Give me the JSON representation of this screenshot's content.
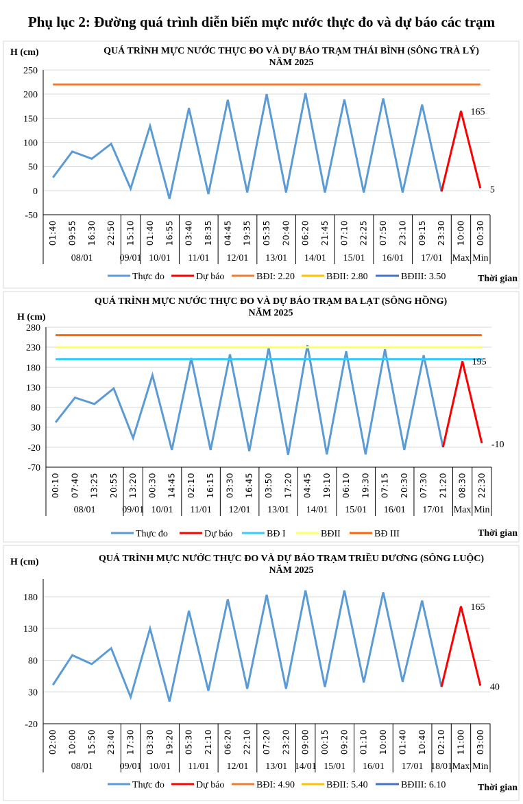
{
  "page_title": "Phụ lục 2: Đường quá trình diễn biến mực nước thực đo và dự báo các trạm",
  "chart_data": [
    {
      "type": "line",
      "title": [
        "QUÁ TRÌNH MỰC NƯỚC THỰC ĐO VÀ DỰ BÁO TRẠM THÁI BÌNH (SÔNG TRÀ LÝ)",
        "NĂM 2025"
      ],
      "ylabel": "H (cm)",
      "xlabel": "Thời gian",
      "ylim": [
        -50,
        250
      ],
      "yticks": [
        -50,
        0,
        50,
        100,
        150,
        200,
        250
      ],
      "grid": true,
      "legend_position": "bottom",
      "categories": [
        "01:40",
        "09:55",
        "16:30",
        "22:50",
        "15:10",
        "01:40",
        "16:55",
        "03:40",
        "18:35",
        "04:45",
        "19:35",
        "05:35",
        "20:40",
        "06:20",
        "21:45",
        "07:10",
        "22:25",
        "07:50",
        "23:10",
        "09:15",
        "23:30",
        "10:00",
        "00:30"
      ],
      "groups": [
        {
          "label": "08/01",
          "count": 4
        },
        {
          "label": "09/01",
          "count": 1
        },
        {
          "label": "10/01",
          "count": 2
        },
        {
          "label": "11/01",
          "count": 2
        },
        {
          "label": "12/01",
          "count": 2
        },
        {
          "label": "13/01",
          "count": 2
        },
        {
          "label": "14/01",
          "count": 2
        },
        {
          "label": "15/01",
          "count": 2
        },
        {
          "label": "16/01",
          "count": 2
        },
        {
          "label": "17/01",
          "count": 2
        },
        {
          "label": "Max",
          "count": 1
        },
        {
          "label": "Min",
          "count": 1
        }
      ],
      "series": [
        {
          "name": "Thực đo",
          "color": "#5b9bd5",
          "values": [
            27,
            81,
            66,
            97,
            4,
            134,
            -17,
            171,
            -7,
            188,
            -4,
            200,
            -4,
            202,
            -4,
            189,
            -4,
            191,
            -4,
            178,
            -2,
            null,
            null
          ]
        },
        {
          "name": "Dự báo",
          "color": "#ff0000",
          "values": [
            null,
            null,
            null,
            null,
            null,
            null,
            null,
            null,
            null,
            null,
            null,
            null,
            null,
            null,
            null,
            null,
            null,
            null,
            null,
            null,
            -2,
            165,
            5
          ]
        },
        {
          "name": "BĐI: 2.20",
          "color": "#ed7d31",
          "level": 220
        },
        {
          "name": "BĐII: 2.80",
          "color": "#ffc000",
          "level": 280
        },
        {
          "name": "BĐIII: 3.50",
          "color": "#4472c4",
          "level": 350
        }
      ],
      "annotations": [
        {
          "index": 21,
          "text": "165"
        },
        {
          "index": 22,
          "text": "5"
        }
      ]
    },
    {
      "type": "line",
      "title": [
        "QUÁ TRÌNH MỰC NƯỚC THỰC ĐO VÀ DỰ BÁO TRẠM BA LẠT (SÔNG HỒNG)",
        "NĂM 2025"
      ],
      "ylabel": "H (cm)",
      "xlabel": "Thời gian",
      "ylim": [
        -70,
        280
      ],
      "yticks": [
        -70,
        -20,
        30,
        80,
        130,
        180,
        230,
        280
      ],
      "grid": true,
      "legend_position": "bottom",
      "categories": [
        "00:10",
        "07:40",
        "13:25",
        "20:55",
        "13:20",
        "00:30",
        "14:45",
        "02:10",
        "16:15",
        "03:30",
        "16:45",
        "03:50",
        "17:20",
        "04:45",
        "19:10",
        "06:10",
        "19:30",
        "07:15",
        "20:30",
        "07:30",
        "21:20",
        "08:30",
        "22:30"
      ],
      "groups": [
        {
          "label": "08/01",
          "count": 4
        },
        {
          "label": "09/01",
          "count": 1
        },
        {
          "label": "10/01",
          "count": 2
        },
        {
          "label": "11/01",
          "count": 2
        },
        {
          "label": "12/01",
          "count": 2
        },
        {
          "label": "13/01",
          "count": 2
        },
        {
          "label": "14/01",
          "count": 2
        },
        {
          "label": "15/01",
          "count": 2
        },
        {
          "label": "16/01",
          "count": 2
        },
        {
          "label": "17/01",
          "count": 2
        },
        {
          "label": "Max",
          "count": 1
        },
        {
          "label": "Min",
          "count": 1
        }
      ],
      "series": [
        {
          "name": "Thực đo",
          "color": "#5b9bd5",
          "values": [
            42,
            104,
            88,
            127,
            3,
            160,
            -27,
            203,
            -27,
            212,
            -30,
            228,
            -39,
            235,
            -38,
            220,
            -38,
            225,
            -27,
            210,
            -20,
            null,
            null
          ]
        },
        {
          "name": "Dự báo",
          "color": "#ff0000",
          "values": [
            null,
            null,
            null,
            null,
            null,
            null,
            null,
            null,
            null,
            null,
            null,
            null,
            null,
            null,
            null,
            null,
            null,
            null,
            null,
            null,
            -20,
            195,
            -10
          ]
        },
        {
          "name": "BĐ I",
          "color": "#33ccff",
          "level": 200
        },
        {
          "name": "BĐII",
          "color": "#ffff66",
          "level": 230
        },
        {
          "name": "BĐ III",
          "color": "#ff6600",
          "level": 260
        }
      ],
      "annotations": [
        {
          "index": 21,
          "text": "195"
        },
        {
          "index": 22,
          "text": "-10"
        }
      ]
    },
    {
      "type": "line",
      "title": [
        "QUÁ TRÌNH MỰC NƯỚC THỰC ĐO VÀ DỰ BÁO TRẠM TRIỀU DƯƠNG (SÔNG LUỘC)",
        "NĂM 2025"
      ],
      "ylabel": "H (cm)",
      "xlabel": "Thời gian",
      "ylim": [
        -20,
        208
      ],
      "yticks": [
        -20,
        30,
        80,
        130,
        180
      ],
      "grid": true,
      "legend_position": "bottom",
      "categories": [
        "02:00",
        "10:00",
        "15:50",
        "23:40",
        "17:30",
        "03:30",
        "19:20",
        "05:30",
        "21:10",
        "06:20",
        "22:10",
        "07:20",
        "23:20",
        "09:00",
        "00:15",
        "09:20",
        "01:10",
        "10:00",
        "01:40",
        "10:40",
        "02:10",
        "11:00",
        "03:00"
      ],
      "groups": [
        {
          "label": "08/01",
          "count": 4
        },
        {
          "label": "09/01",
          "count": 1
        },
        {
          "label": "10/01",
          "count": 2
        },
        {
          "label": "11/01",
          "count": 2
        },
        {
          "label": "12/01",
          "count": 2
        },
        {
          "label": "13/01",
          "count": 2
        },
        {
          "label": "14/01",
          "count": 1
        },
        {
          "label": "15/01",
          "count": 2
        },
        {
          "label": "16/01",
          "count": 2
        },
        {
          "label": "17/01",
          "count": 2
        },
        {
          "label": "18/01",
          "count": 1
        },
        {
          "label": "Max",
          "count": 1
        },
        {
          "label": "Min",
          "count": 1
        }
      ],
      "series": [
        {
          "name": "Thực đo",
          "color": "#5b9bd5",
          "values": [
            41,
            88,
            74,
            99,
            22,
            130,
            15,
            158,
            32,
            176,
            35,
            183,
            35,
            190,
            38,
            190,
            45,
            187,
            46,
            174,
            38,
            null,
            null
          ]
        },
        {
          "name": "Dự báo",
          "color": "#ff0000",
          "values": [
            null,
            null,
            null,
            null,
            null,
            null,
            null,
            null,
            null,
            null,
            null,
            null,
            null,
            null,
            null,
            null,
            null,
            null,
            null,
            null,
            38,
            165,
            40
          ]
        },
        {
          "name": "BĐI: 4.90",
          "color": "#ed7d31",
          "level": 490
        },
        {
          "name": "BĐII: 5.40",
          "color": "#ffc000",
          "level": 540
        },
        {
          "name": "BĐIII: 6.10",
          "color": "#4472c4",
          "level": 610
        }
      ],
      "annotations": [
        {
          "index": 21,
          "text": "165"
        },
        {
          "index": 22,
          "text": "40"
        }
      ]
    }
  ]
}
